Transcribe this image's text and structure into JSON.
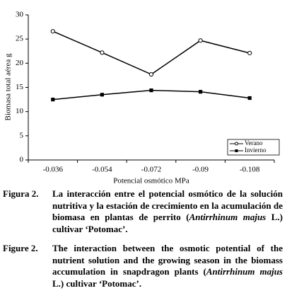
{
  "chart_data": {
    "type": "line",
    "x_label": "Potencial osmótico MPa",
    "y_label": "Biomasa total aérea g",
    "categories": [
      "-0.036",
      "-0.054",
      "-0.072",
      "-0.09",
      "-0.108"
    ],
    "series": [
      {
        "name": "Verano",
        "color": "#000000",
        "marker": "open-circle",
        "values": [
          26.6,
          22.2,
          17.7,
          24.7,
          22.1
        ]
      },
      {
        "name": "Invierno",
        "color": "#000000",
        "marker": "filled-square",
        "values": [
          12.5,
          13.5,
          14.4,
          14.1,
          12.8
        ]
      }
    ],
    "ylim": [
      0,
      30
    ],
    "yticks": [
      0,
      5,
      10,
      15,
      20,
      25,
      30
    ],
    "grid": false,
    "legend": "bottom-right"
  },
  "caption_es": {
    "label": "Figura 2.",
    "text": "La interacción entre el potencial osmótico de la solución nutritiva y la estación de crecimiento en la acumulación de biomasa en plantas de perrito (",
    "species": "Antirrhinum majus",
    "text_end": " L.) cultivar ‘Potomac’."
  },
  "caption_en": {
    "label": "Figure 2.",
    "text": "The interaction between the osmotic potential of the nutrient solution and the growing season in the biomass accumulation in snapdragon plants (",
    "species": "Antirrhinum majus",
    "text_end": " L.) cultivar ‘Potomac’."
  }
}
